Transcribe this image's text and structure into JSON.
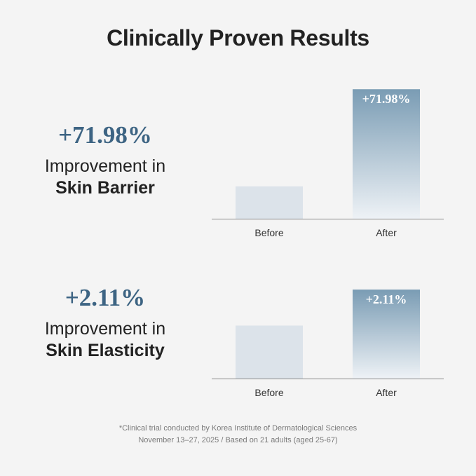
{
  "title": "Clinically Proven Results",
  "colors": {
    "accent": "#3d6483",
    "bar_before": "#dce3ea",
    "bar_after_top": "#7a9cb4",
    "bar_after_bottom": "#eef2f6",
    "axis": "#8a8a8a"
  },
  "metrics": [
    {
      "value": "+71.98%",
      "line1": "Improvement in",
      "line2": "Skin Barrier"
    },
    {
      "value": "+2.11%",
      "line1": "Improvement in",
      "line2": "Skin Elasticity"
    }
  ],
  "chart_data": [
    {
      "type": "bar",
      "categories": [
        "Before",
        "After"
      ],
      "values": [
        1.0,
        4.0
      ],
      "data_labels": [
        "",
        "+71.98%"
      ],
      "ylim": [
        0,
        4.2
      ],
      "grid": false
    },
    {
      "type": "bar",
      "categories": [
        "Before",
        "After"
      ],
      "values": [
        1.0,
        1.68
      ],
      "data_labels": [
        "",
        "+2.11%"
      ],
      "ylim": [
        0,
        1.8
      ],
      "grid": false
    }
  ],
  "footnote": {
    "line1": "*Clinical trial conducted by Korea Institute of Dermatological Sciences",
    "line2": "November 13–27, 2025 / Based on 21 adults (aged 25-67)"
  }
}
